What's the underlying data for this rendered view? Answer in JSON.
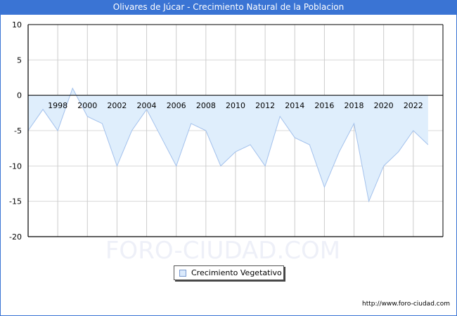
{
  "header": {
    "title": "Olivares de Júcar - Crecimiento Natural de la Poblacion"
  },
  "legend": {
    "label": "Crecimiento Vegetativo"
  },
  "watermark": "FORO-CIUDAD.COM",
  "footer": {
    "url": "http://www.foro-ciudad.com"
  },
  "colors": {
    "title_bg": "#3a74d4",
    "area_fill": "#dfeefc",
    "line": "#a3c1ec",
    "grid": "#d8d8d8"
  },
  "chart_data": {
    "type": "area",
    "title": "Olivares de Júcar - Crecimiento Natural de la Poblacion",
    "xlabel": "",
    "ylabel": "",
    "ylim": [
      -20,
      10
    ],
    "yticks": [
      10,
      5,
      0,
      -5,
      -10,
      -15,
      -20
    ],
    "xtick_labels": [
      "1998",
      "2000",
      "2002",
      "2004",
      "2006",
      "2008",
      "2010",
      "2012",
      "2014",
      "2016",
      "2018",
      "2020",
      "2022"
    ],
    "grid": true,
    "legend_position": "bottom",
    "series": [
      {
        "name": "Crecimiento Vegetativo",
        "x": [
          1996,
          1997,
          1998,
          1999,
          2000,
          2001,
          2002,
          2003,
          2004,
          2005,
          2006,
          2007,
          2008,
          2009,
          2010,
          2011,
          2012,
          2013,
          2014,
          2015,
          2016,
          2017,
          2018,
          2019,
          2020,
          2021,
          2022,
          2023
        ],
        "values": [
          -5,
          -2,
          -5,
          1,
          -3,
          -4,
          -10,
          -5,
          -2,
          -6,
          -10,
          -4,
          -5,
          -10,
          -8,
          -7,
          -10,
          -3,
          -6,
          -7,
          -13,
          -8,
          -4,
          -15,
          -10,
          -8,
          -5,
          -7
        ]
      }
    ]
  }
}
